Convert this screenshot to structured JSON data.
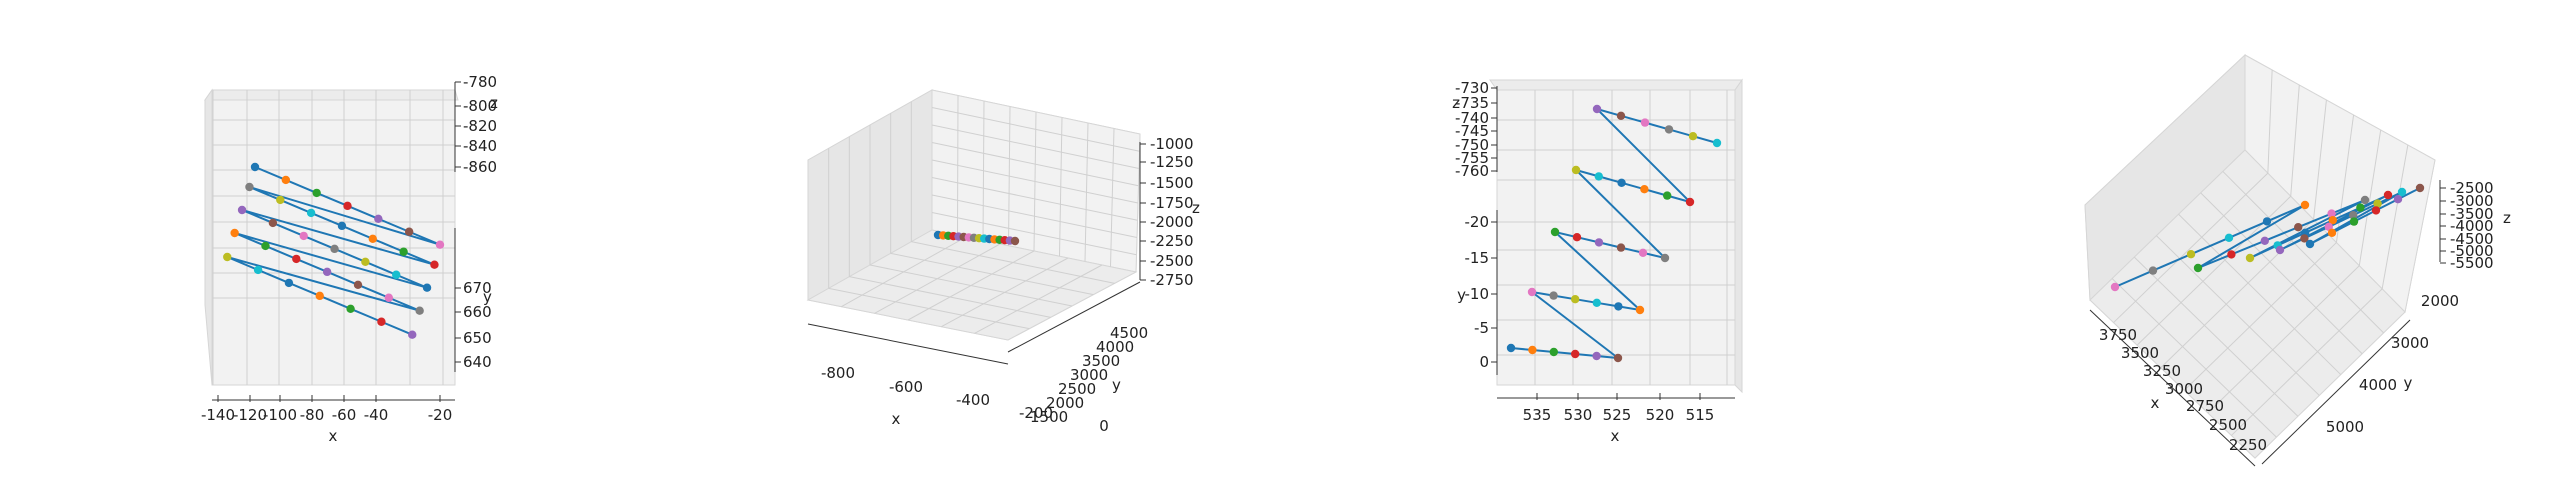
{
  "palette": [
    "#1f77b4",
    "#ff7f0e",
    "#2ca02c",
    "#d62728",
    "#9467bd",
    "#8c564b",
    "#e377c2",
    "#7f7f7f",
    "#bcbd22",
    "#17becf"
  ],
  "chart_data": [
    {
      "type": "scatter3d",
      "title": "",
      "xlabel": "x",
      "ylabel": "y",
      "zlabel": "z",
      "x_ticks": [
        "-140",
        "-120",
        "-100",
        "-80",
        "-60",
        "-40",
        "-20"
      ],
      "y_ticks": [
        "640",
        "650",
        "660",
        "670"
      ],
      "z_ticks": [
        "-780",
        "-800",
        "-820",
        "-840",
        "-860"
      ],
      "xlim": [
        -140,
        -20
      ],
      "ylim": [
        640,
        675
      ],
      "zlim": [
        -870,
        -780
      ],
      "rows": [
        {
          "x_start": -120,
          "x_end": -20,
          "y": 672,
          "z": -830
        },
        {
          "x_start": -123,
          "x_end": -23,
          "y": 668,
          "z": -832
        },
        {
          "x_start": -127,
          "x_end": -27,
          "y": 664,
          "z": -834
        },
        {
          "x_start": -131,
          "x_end": -31,
          "y": 660,
          "z": -836
        },
        {
          "x_start": -135,
          "x_end": -35,
          "y": 656,
          "z": -838
        }
      ],
      "points_per_row": 7
    },
    {
      "type": "scatter3d",
      "title": "",
      "xlabel": "x",
      "ylabel": "y",
      "zlabel": "z",
      "x_ticks": [
        "-800",
        "-600",
        "-400",
        "-200",
        "0"
      ],
      "y_ticks": [
        "1500",
        "2000",
        "2500",
        "3000",
        "3500",
        "4000",
        "4500"
      ],
      "z_ticks": [
        "-1000",
        "-1250",
        "-1500",
        "-1750",
        "-2000",
        "-2250",
        "-2500",
        "-2750"
      ],
      "xlim": [
        -900,
        0
      ],
      "ylim": [
        1500,
        4700
      ],
      "zlim": [
        -2900,
        -1000
      ],
      "cluster": {
        "x_from": -390,
        "x_to": -170,
        "y": 3000,
        "z": -2150
      },
      "points": 16
    },
    {
      "type": "scatter3d",
      "title": "",
      "xlabel": "x",
      "ylabel": "y",
      "zlabel": "z",
      "x_ticks": [
        "535",
        "530",
        "525",
        "520",
        "515"
      ],
      "y_ticks": [
        "0",
        "-5",
        "-10",
        "-15",
        "-20"
      ],
      "z_ticks": [
        "-730",
        "-735",
        "-740",
        "-745",
        "-750",
        "-755",
        "-760"
      ],
      "xlim": [
        540,
        512
      ],
      "ylim": [
        2,
        -22
      ],
      "zlim": [
        -762,
        -728
      ],
      "rows": [
        {
          "x_start": 537,
          "x_end": 524.5,
          "y": 0
        },
        {
          "x_start": 533.5,
          "x_end": 522,
          "y": -9
        },
        {
          "x_start": 530.5,
          "x_end": 519.5,
          "y": -17
        },
        {
          "x_start": 528,
          "x_end": 517,
          "y": -25
        },
        {
          "x_start": 525,
          "x_end": 514,
          "y": -33
        }
      ],
      "points_per_row": 6
    },
    {
      "type": "scatter3d",
      "title": "",
      "xlabel": "x",
      "ylabel": "y",
      "zlabel": "z",
      "x_ticks": [
        "3750",
        "3500",
        "3250",
        "3000",
        "2750",
        "2500",
        "2250"
      ],
      "y_ticks": [
        "2000",
        "3000",
        "4000",
        "5000"
      ],
      "z_ticks": [
        "-2500",
        "-3000",
        "-3500",
        "-4000",
        "-4500",
        "-5000",
        "-5500"
      ],
      "xlim": [
        2250,
        3800
      ],
      "ylim": [
        1500,
        5500
      ],
      "zlim": [
        -5700,
        -2300
      ],
      "lines": 5,
      "points_per_line": 6
    }
  ]
}
